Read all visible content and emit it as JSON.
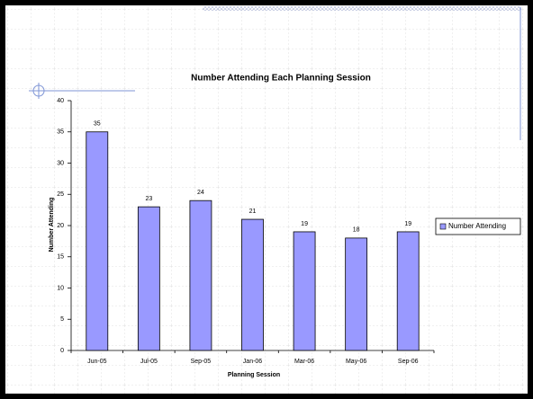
{
  "chart_data": {
    "type": "bar",
    "title": "Number Attending Each Planning Session",
    "x_label": "Planning Session",
    "y_label": "Number Attending",
    "categories": [
      "Jun-05",
      "Jul-05",
      "Sep-05",
      "Jan-06",
      "Mar-06",
      "May-06",
      "Sep-06"
    ],
    "series": [
      {
        "name": "Number Attending",
        "color": "#9999ff",
        "values": [
          35,
          23,
          24,
          21,
          19,
          18,
          19
        ]
      }
    ],
    "ylim": [
      0,
      40
    ],
    "yticks": [
      0,
      5,
      10,
      15,
      20,
      25,
      30,
      35,
      40
    ],
    "legend": "right"
  }
}
